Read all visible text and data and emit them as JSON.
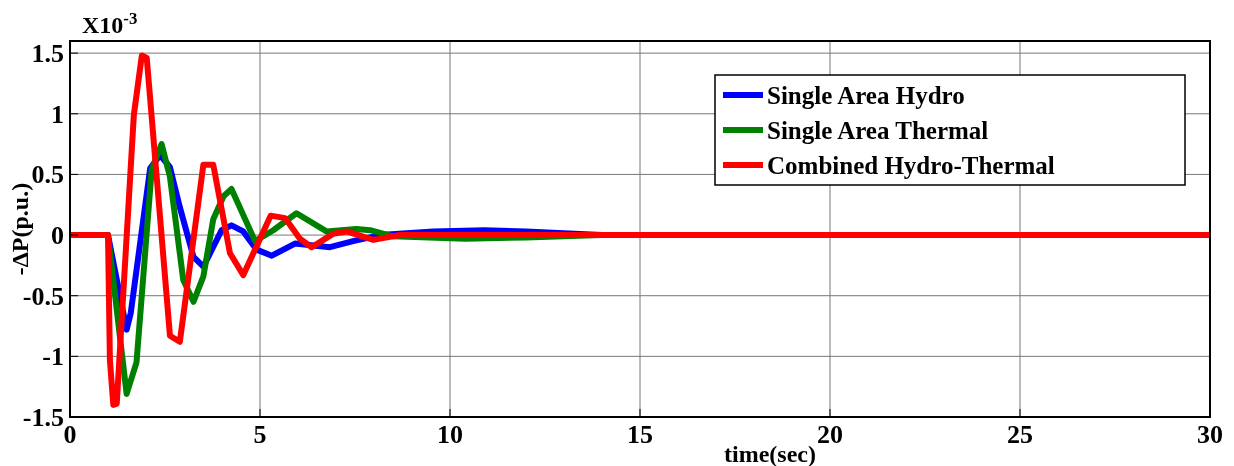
{
  "chart_data": {
    "type": "line",
    "xlabel": "time(sec)",
    "ylabel": "-ΔP(p.u.)",
    "annotations": [
      "X10$^{-3}$"
    ],
    "xlim": [
      0,
      30
    ],
    "xticks": [
      0,
      5,
      10,
      15,
      20,
      25,
      30
    ],
    "ylim": [
      -1.5,
      1.6
    ],
    "yticks": [
      -1.5,
      -1,
      -0.5,
      0,
      0.5,
      1,
      1.5
    ],
    "grid": true,
    "legend": "top right",
    "marker": "none",
    "line_style": "solid",
    "series": [
      {
        "name": "Single Area Hydro",
        "color": "#0000ff",
        "x": [
          0,
          1,
          1.49,
          1.6,
          2.11,
          2.37,
          2.63,
          2.89,
          3.25,
          3.51,
          3.99,
          4.25,
          4.56,
          4.91,
          5.31,
          5.92,
          6.84,
          7.45,
          8.16,
          9.56,
          10.9,
          12,
          14,
          30
        ],
        "values": [
          0,
          0,
          -0.78,
          -0.64,
          0.55,
          0.66,
          0.56,
          0.23,
          -0.18,
          -0.26,
          0.04,
          0.08,
          0.03,
          -0.12,
          -0.17,
          -0.07,
          -0.1,
          -0.05,
          0,
          0.03,
          0.04,
          0.03,
          0,
          0
        ]
      },
      {
        "name": "Single Area Thermal",
        "color": "#008000",
        "x": [
          0,
          1,
          1.49,
          1.75,
          2.15,
          2.41,
          2.63,
          2.98,
          3.25,
          3.51,
          3.77,
          4.04,
          4.25,
          4.87,
          5.35,
          5.96,
          6.75,
          7.54,
          7.9,
          8.5,
          10.4,
          12,
          14,
          30
        ],
        "values": [
          0,
          0,
          -1.31,
          -1.05,
          0.54,
          0.75,
          0.48,
          -0.37,
          -0.55,
          -0.34,
          0.13,
          0.32,
          0.38,
          -0.05,
          0.04,
          0.18,
          0.03,
          0.05,
          0.04,
          -0.01,
          -0.03,
          -0.02,
          0,
          0
        ]
      },
      {
        "name": "Combined Hydro-Thermal",
        "color": "#ff0000",
        "x": [
          0,
          1,
          1.05,
          1.14,
          1.23,
          1.68,
          1.89,
          2.02,
          2.63,
          2.89,
          3.51,
          3.77,
          4.21,
          4.56,
          5.28,
          5.66,
          6.05,
          6.36,
          6.92,
          7.28,
          7.98,
          8.68,
          9.6,
          30
        ],
        "values": [
          0,
          0,
          -1.03,
          -1.4,
          -1.39,
          0.99,
          1.48,
          1.46,
          -0.83,
          -0.88,
          0.58,
          0.58,
          -0.15,
          -0.33,
          0.16,
          0.14,
          -0.03,
          -0.1,
          0.01,
          0.03,
          -0.04,
          0,
          0,
          0
        ]
      }
    ]
  }
}
